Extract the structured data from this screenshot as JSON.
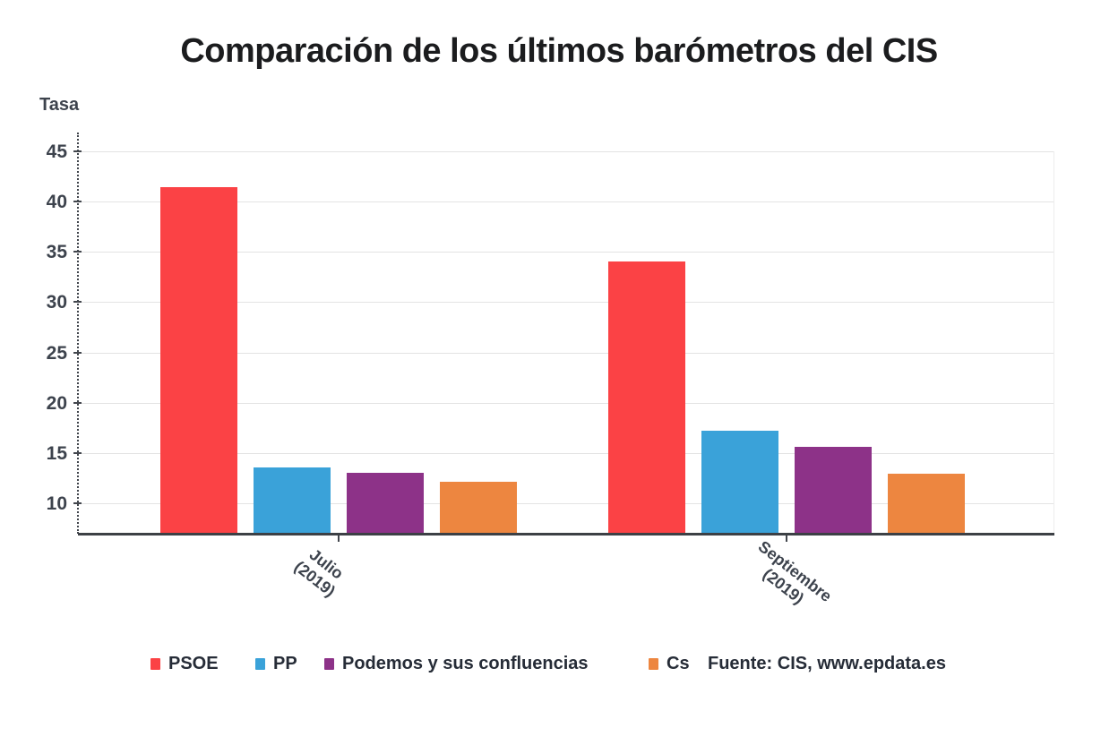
{
  "title": "Comparación de los últimos barómetros del CIS",
  "y_axis": {
    "label": "Tasa",
    "ticks": [
      45,
      40,
      35,
      30,
      25,
      20,
      15,
      10
    ]
  },
  "source": "Fuente: CIS, www.epdata.es",
  "chart_data": {
    "type": "bar",
    "title": "Comparación de los últimos barómetros del CIS",
    "ylabel": "Tasa",
    "xlabel": "",
    "ylim": [
      7,
      47
    ],
    "yticks": [
      10,
      15,
      20,
      25,
      30,
      35,
      40,
      45
    ],
    "grid": true,
    "legend_position": "bottom",
    "categories": [
      {
        "label": "Julio (2019)",
        "lines": [
          "Julio",
          "(2019)"
        ]
      },
      {
        "label": "Septiembre (2019)",
        "lines": [
          "Septiembre",
          "(2019)"
        ]
      }
    ],
    "series": [
      {
        "name": "PSOE",
        "color": "#fb4245",
        "values": [
          41.3,
          34.0
        ]
      },
      {
        "name": "PP",
        "color": "#3aa2d9",
        "values": [
          13.5,
          17.1
        ]
      },
      {
        "name": "Podemos y sus confluencias",
        "color": "#8d3288",
        "values": [
          13.0,
          15.5
        ]
      },
      {
        "name": "Cs",
        "color": "#ed8640",
        "values": [
          12.1,
          12.9
        ]
      }
    ]
  }
}
